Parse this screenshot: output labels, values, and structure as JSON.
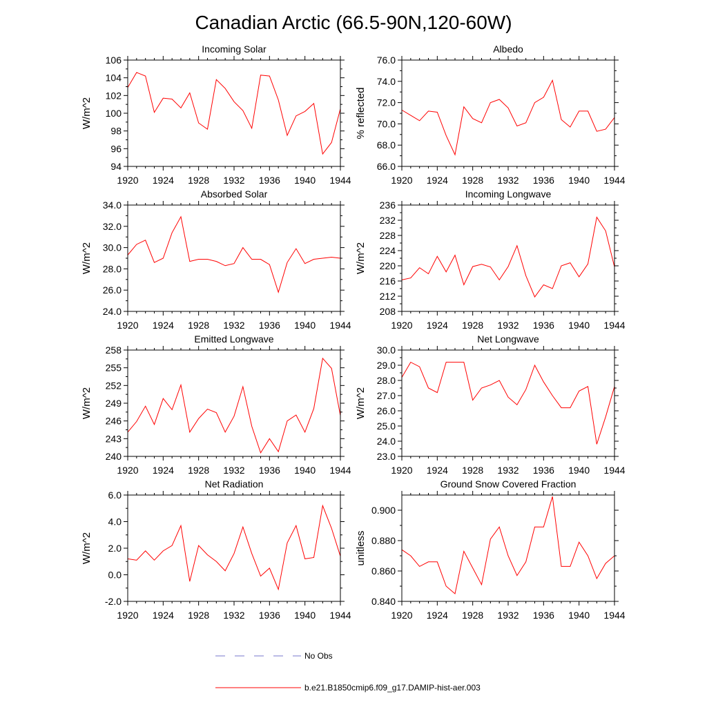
{
  "figure_title": "Canadian Arctic (66.5-90N,120-60W)",
  "legend": {
    "obs_label": "No Obs",
    "obs_color": "#7777cc",
    "model_label": "b.e21.B1850cmip6.f09_g17.DAMIP-hist-aer.003",
    "model_color": "#ff0000"
  },
  "chart_data": [
    {
      "type": "line",
      "title": "Incoming Solar",
      "ylabel": "W/m^2",
      "xlim": [
        1920,
        1944
      ],
      "ylim": [
        94,
        106
      ],
      "yticks": [
        "94",
        "96",
        "98",
        "100",
        "102",
        "104",
        "106"
      ],
      "xticks": [
        "1920",
        "1924",
        "1928",
        "1932",
        "1936",
        "1940",
        "1944"
      ],
      "x": [
        1920,
        1921,
        1922,
        1923,
        1924,
        1925,
        1926,
        1927,
        1928,
        1929,
        1930,
        1931,
        1932,
        1933,
        1934,
        1935,
        1936,
        1937,
        1938,
        1939,
        1940,
        1941,
        1942,
        1943,
        1944
      ],
      "series": [
        {
          "values": [
            102.9,
            104.6,
            104.2,
            100.1,
            101.7,
            101.6,
            100.6,
            102.3,
            98.9,
            98.2,
            103.8,
            102.8,
            101.3,
            100.3,
            98.3,
            104.3,
            104.2,
            101.5,
            97.5,
            99.7,
            100.2,
            101.1,
            95.4,
            96.7,
            100.5
          ]
        }
      ]
    },
    {
      "type": "line",
      "title": "Albedo",
      "ylabel": "% reflected",
      "xlim": [
        1920,
        1944
      ],
      "ylim": [
        66,
        76
      ],
      "yticks": [
        "66.0",
        "68.0",
        "70.0",
        "72.0",
        "74.0",
        "76.0"
      ],
      "xticks": [
        "1920",
        "1924",
        "1928",
        "1932",
        "1936",
        "1940",
        "1944"
      ],
      "x": [
        1920,
        1921,
        1922,
        1923,
        1924,
        1925,
        1926,
        1927,
        1928,
        1929,
        1930,
        1931,
        1932,
        1933,
        1934,
        1935,
        1936,
        1937,
        1938,
        1939,
        1940,
        1941,
        1942,
        1943,
        1944
      ],
      "series": [
        {
          "values": [
            71.3,
            70.8,
            70.3,
            71.2,
            71.1,
            68.9,
            67.1,
            71.6,
            70.5,
            70.1,
            72.0,
            72.3,
            71.5,
            69.8,
            70.1,
            72.0,
            72.5,
            74.1,
            70.4,
            69.7,
            71.2,
            71.2,
            69.3,
            69.5,
            70.6
          ]
        }
      ]
    },
    {
      "type": "line",
      "title": "Absorbed Solar",
      "ylabel": "W/m^2",
      "xlim": [
        1920,
        1944
      ],
      "ylim": [
        24,
        34
      ],
      "yticks": [
        "24.0",
        "26.0",
        "28.0",
        "30.0",
        "32.0",
        "34.0"
      ],
      "xticks": [
        "1920",
        "1924",
        "1928",
        "1932",
        "1936",
        "1940",
        "1944"
      ],
      "x": [
        1920,
        1921,
        1922,
        1923,
        1924,
        1925,
        1926,
        1927,
        1928,
        1929,
        1930,
        1931,
        1932,
        1933,
        1934,
        1935,
        1936,
        1937,
        1938,
        1939,
        1940,
        1941,
        1942,
        1943,
        1944
      ],
      "series": [
        {
          "values": [
            29.3,
            30.3,
            30.7,
            28.6,
            29.0,
            31.4,
            32.9,
            28.7,
            28.9,
            28.9,
            28.7,
            28.3,
            28.5,
            30.0,
            28.9,
            28.9,
            28.4,
            25.8,
            28.6,
            29.9,
            28.5,
            28.9,
            29.0,
            29.1,
            29.0
          ]
        }
      ]
    },
    {
      "type": "line",
      "title": "Incoming Longwave",
      "ylabel": "W/m^2",
      "xlim": [
        1920,
        1944
      ],
      "ylim": [
        208,
        236
      ],
      "yticks": [
        "208",
        "212",
        "216",
        "220",
        "224",
        "228",
        "232",
        "236"
      ],
      "xticks": [
        "1920",
        "1924",
        "1928",
        "1932",
        "1936",
        "1940",
        "1944"
      ],
      "x": [
        1920,
        1921,
        1922,
        1923,
        1924,
        1925,
        1926,
        1927,
        1928,
        1929,
        1930,
        1931,
        1932,
        1933,
        1934,
        1935,
        1936,
        1937,
        1938,
        1939,
        1940,
        1941,
        1942,
        1943,
        1944
      ],
      "series": [
        {
          "values": [
            216.3,
            216.8,
            219.5,
            217.9,
            222.5,
            218.4,
            222.8,
            215.0,
            219.8,
            220.4,
            219.7,
            216.3,
            219.8,
            225.3,
            217.4,
            211.8,
            215.0,
            214.0,
            220.0,
            220.8,
            217.1,
            220.5,
            232.8,
            229.2,
            219.7
          ]
        }
      ]
    },
    {
      "type": "line",
      "title": "Emitted Longwave",
      "ylabel": "W/m^2",
      "xlim": [
        1920,
        1944
      ],
      "ylim": [
        240,
        258
      ],
      "yticks": [
        "240",
        "243",
        "246",
        "249",
        "252",
        "255",
        "258"
      ],
      "xticks": [
        "1920",
        "1924",
        "1928",
        "1932",
        "1936",
        "1940",
        "1944"
      ],
      "x": [
        1920,
        1921,
        1922,
        1923,
        1924,
        1925,
        1926,
        1927,
        1928,
        1929,
        1930,
        1931,
        1932,
        1933,
        1934,
        1935,
        1936,
        1937,
        1938,
        1939,
        1940,
        1941,
        1942,
        1943,
        1944
      ],
      "series": [
        {
          "values": [
            244.1,
            245.9,
            248.5,
            245.4,
            249.8,
            247.9,
            252.1,
            244.1,
            246.4,
            248.0,
            247.4,
            244.1,
            246.8,
            251.8,
            245.1,
            240.6,
            243.0,
            240.8,
            246.0,
            247.0,
            244.1,
            248.1,
            256.6,
            254.9,
            246.9
          ]
        }
      ]
    },
    {
      "type": "line",
      "title": "Net Longwave",
      "ylabel": "W/m^2",
      "xlim": [
        1920,
        1944
      ],
      "ylim": [
        23,
        30
      ],
      "yticks": [
        "23.0",
        "24.0",
        "25.0",
        "26.0",
        "27.0",
        "28.0",
        "29.0",
        "30.0"
      ],
      "xticks": [
        "1920",
        "1924",
        "1928",
        "1932",
        "1936",
        "1940",
        "1944"
      ],
      "x": [
        1920,
        1921,
        1922,
        1923,
        1924,
        1925,
        1926,
        1927,
        1928,
        1929,
        1930,
        1931,
        1932,
        1933,
        1934,
        1935,
        1936,
        1937,
        1938,
        1939,
        1940,
        1941,
        1942,
        1943,
        1944
      ],
      "series": [
        {
          "values": [
            28.2,
            29.2,
            28.9,
            27.5,
            27.2,
            29.2,
            29.2,
            29.2,
            26.7,
            27.5,
            27.7,
            28.0,
            26.9,
            26.4,
            27.4,
            29.0,
            27.9,
            27.0,
            26.2,
            26.2,
            27.3,
            27.6,
            23.8,
            25.6,
            27.6
          ]
        }
      ]
    },
    {
      "type": "line",
      "title": "Net Radiation",
      "ylabel": "W/m^2",
      "xlim": [
        1920,
        1944
      ],
      "ylim": [
        -2,
        6
      ],
      "yticks": [
        "-2.0",
        "0.0",
        "2.0",
        "4.0",
        "6.0"
      ],
      "xticks": [
        "1920",
        "1924",
        "1928",
        "1932",
        "1936",
        "1940",
        "1944"
      ],
      "x": [
        1920,
        1921,
        1922,
        1923,
        1924,
        1925,
        1926,
        1927,
        1928,
        1929,
        1930,
        1931,
        1932,
        1933,
        1934,
        1935,
        1936,
        1937,
        1938,
        1939,
        1940,
        1941,
        1942,
        1943,
        1944
      ],
      "series": [
        {
          "values": [
            1.2,
            1.1,
            1.8,
            1.1,
            1.8,
            2.2,
            3.7,
            -0.5,
            2.2,
            1.5,
            1.0,
            0.3,
            1.6,
            3.6,
            1.6,
            -0.1,
            0.5,
            -1.1,
            2.4,
            3.7,
            1.2,
            1.3,
            5.2,
            3.5,
            1.4
          ]
        }
      ]
    },
    {
      "type": "line",
      "title": "Ground Snow Covered Fraction",
      "ylabel": "unitless",
      "xlim": [
        1920,
        1944
      ],
      "ylim": [
        0.84,
        0.91
      ],
      "yticks": [
        "0.840",
        "0.860",
        "0.880",
        "0.900"
      ],
      "xticks": [
        "1920",
        "1924",
        "1928",
        "1932",
        "1936",
        "1940",
        "1944"
      ],
      "x": [
        1920,
        1921,
        1922,
        1923,
        1924,
        1925,
        1926,
        1927,
        1928,
        1929,
        1930,
        1931,
        1932,
        1933,
        1934,
        1935,
        1936,
        1937,
        1938,
        1939,
        1940,
        1941,
        1942,
        1943,
        1944
      ],
      "series": [
        {
          "values": [
            0.874,
            0.87,
            0.863,
            0.866,
            0.866,
            0.85,
            0.845,
            0.873,
            0.862,
            0.851,
            0.881,
            0.889,
            0.87,
            0.857,
            0.866,
            0.889,
            0.889,
            0.909,
            0.863,
            0.863,
            0.879,
            0.87,
            0.855,
            0.865,
            0.87
          ]
        }
      ]
    }
  ]
}
